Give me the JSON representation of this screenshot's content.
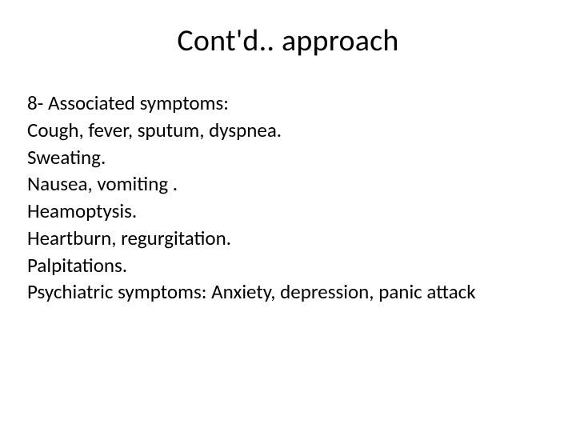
{
  "slide": {
    "title": "Cont'd.. approach",
    "lines": [
      "8- Associated symptoms:",
      "Cough, fever, sputum, dyspnea.",
      "Sweating.",
      "Nausea, vomiting .",
      "Heamoptysis.",
      "Heartburn, regurgitation.",
      "Palpitations.",
      "Psychiatric symptoms: Anxiety, depression, panic attack"
    ],
    "title_fontsize": 38,
    "body_fontsize": 25,
    "text_color": "#000000",
    "background_color": "#ffffff",
    "font_family": "Calibri"
  }
}
